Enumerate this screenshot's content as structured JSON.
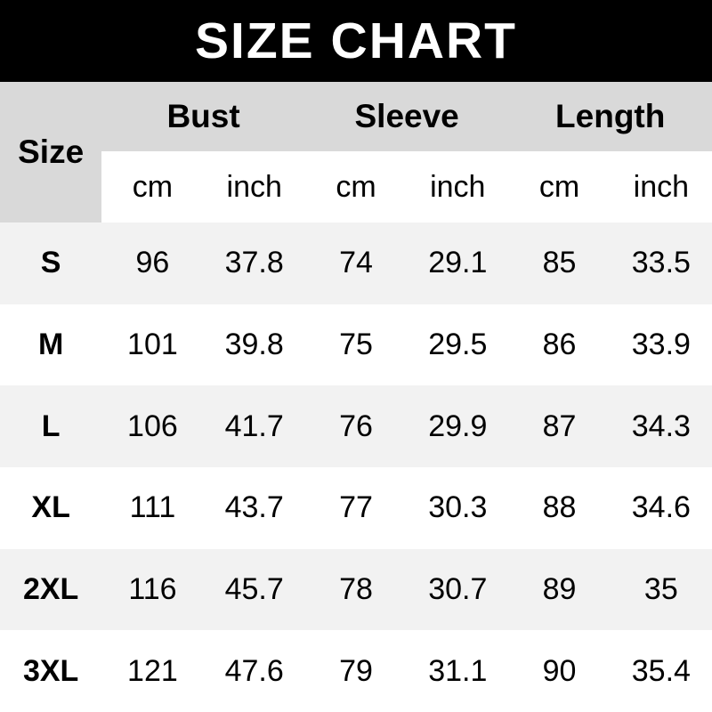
{
  "banner": {
    "title": "SIZE CHART",
    "bg_color": "#000000",
    "text_color": "#ffffff"
  },
  "table": {
    "corner_label": "Size",
    "groups": [
      {
        "label": "Bust"
      },
      {
        "label": "Sleeve"
      },
      {
        "label": "Length"
      }
    ],
    "units": [
      "cm",
      "inch",
      "cm",
      "inch",
      "cm",
      "inch"
    ],
    "rows": [
      {
        "size": "S",
        "values": [
          "96",
          "37.8",
          "74",
          "29.1",
          "85",
          "33.5"
        ]
      },
      {
        "size": "M",
        "values": [
          "101",
          "39.8",
          "75",
          "29.5",
          "86",
          "33.9"
        ]
      },
      {
        "size": "L",
        "values": [
          "106",
          "41.7",
          "76",
          "29.9",
          "87",
          "34.3"
        ]
      },
      {
        "size": "XL",
        "values": [
          "111",
          "43.7",
          "77",
          "30.3",
          "88",
          "34.6"
        ]
      },
      {
        "size": "2XL",
        "values": [
          "116",
          "45.7",
          "78",
          "30.7",
          "89",
          "35"
        ]
      },
      {
        "size": "3XL",
        "values": [
          "121",
          "47.6",
          "79",
          "31.1",
          "90",
          "35.4"
        ]
      }
    ],
    "colors": {
      "header_bg": "#d9d9d9",
      "band_row_bg": "#f2f2f2",
      "plain_row_bg": "#ffffff",
      "text": "#000000"
    }
  },
  "chart_data": {
    "type": "table",
    "title": "SIZE CHART",
    "columns": [
      "Size",
      "Bust cm",
      "Bust inch",
      "Sleeve cm",
      "Sleeve inch",
      "Length cm",
      "Length inch"
    ],
    "rows": [
      [
        "S",
        96,
        37.8,
        74,
        29.1,
        85,
        33.5
      ],
      [
        "M",
        101,
        39.8,
        75,
        29.5,
        86,
        33.9
      ],
      [
        "L",
        106,
        41.7,
        76,
        29.9,
        87,
        34.3
      ],
      [
        "XL",
        111,
        43.7,
        77,
        30.3,
        88,
        34.6
      ],
      [
        "2XL",
        116,
        45.7,
        78,
        30.7,
        89,
        35
      ],
      [
        "3XL",
        121,
        47.6,
        79,
        31.1,
        90,
        35.4
      ]
    ]
  }
}
